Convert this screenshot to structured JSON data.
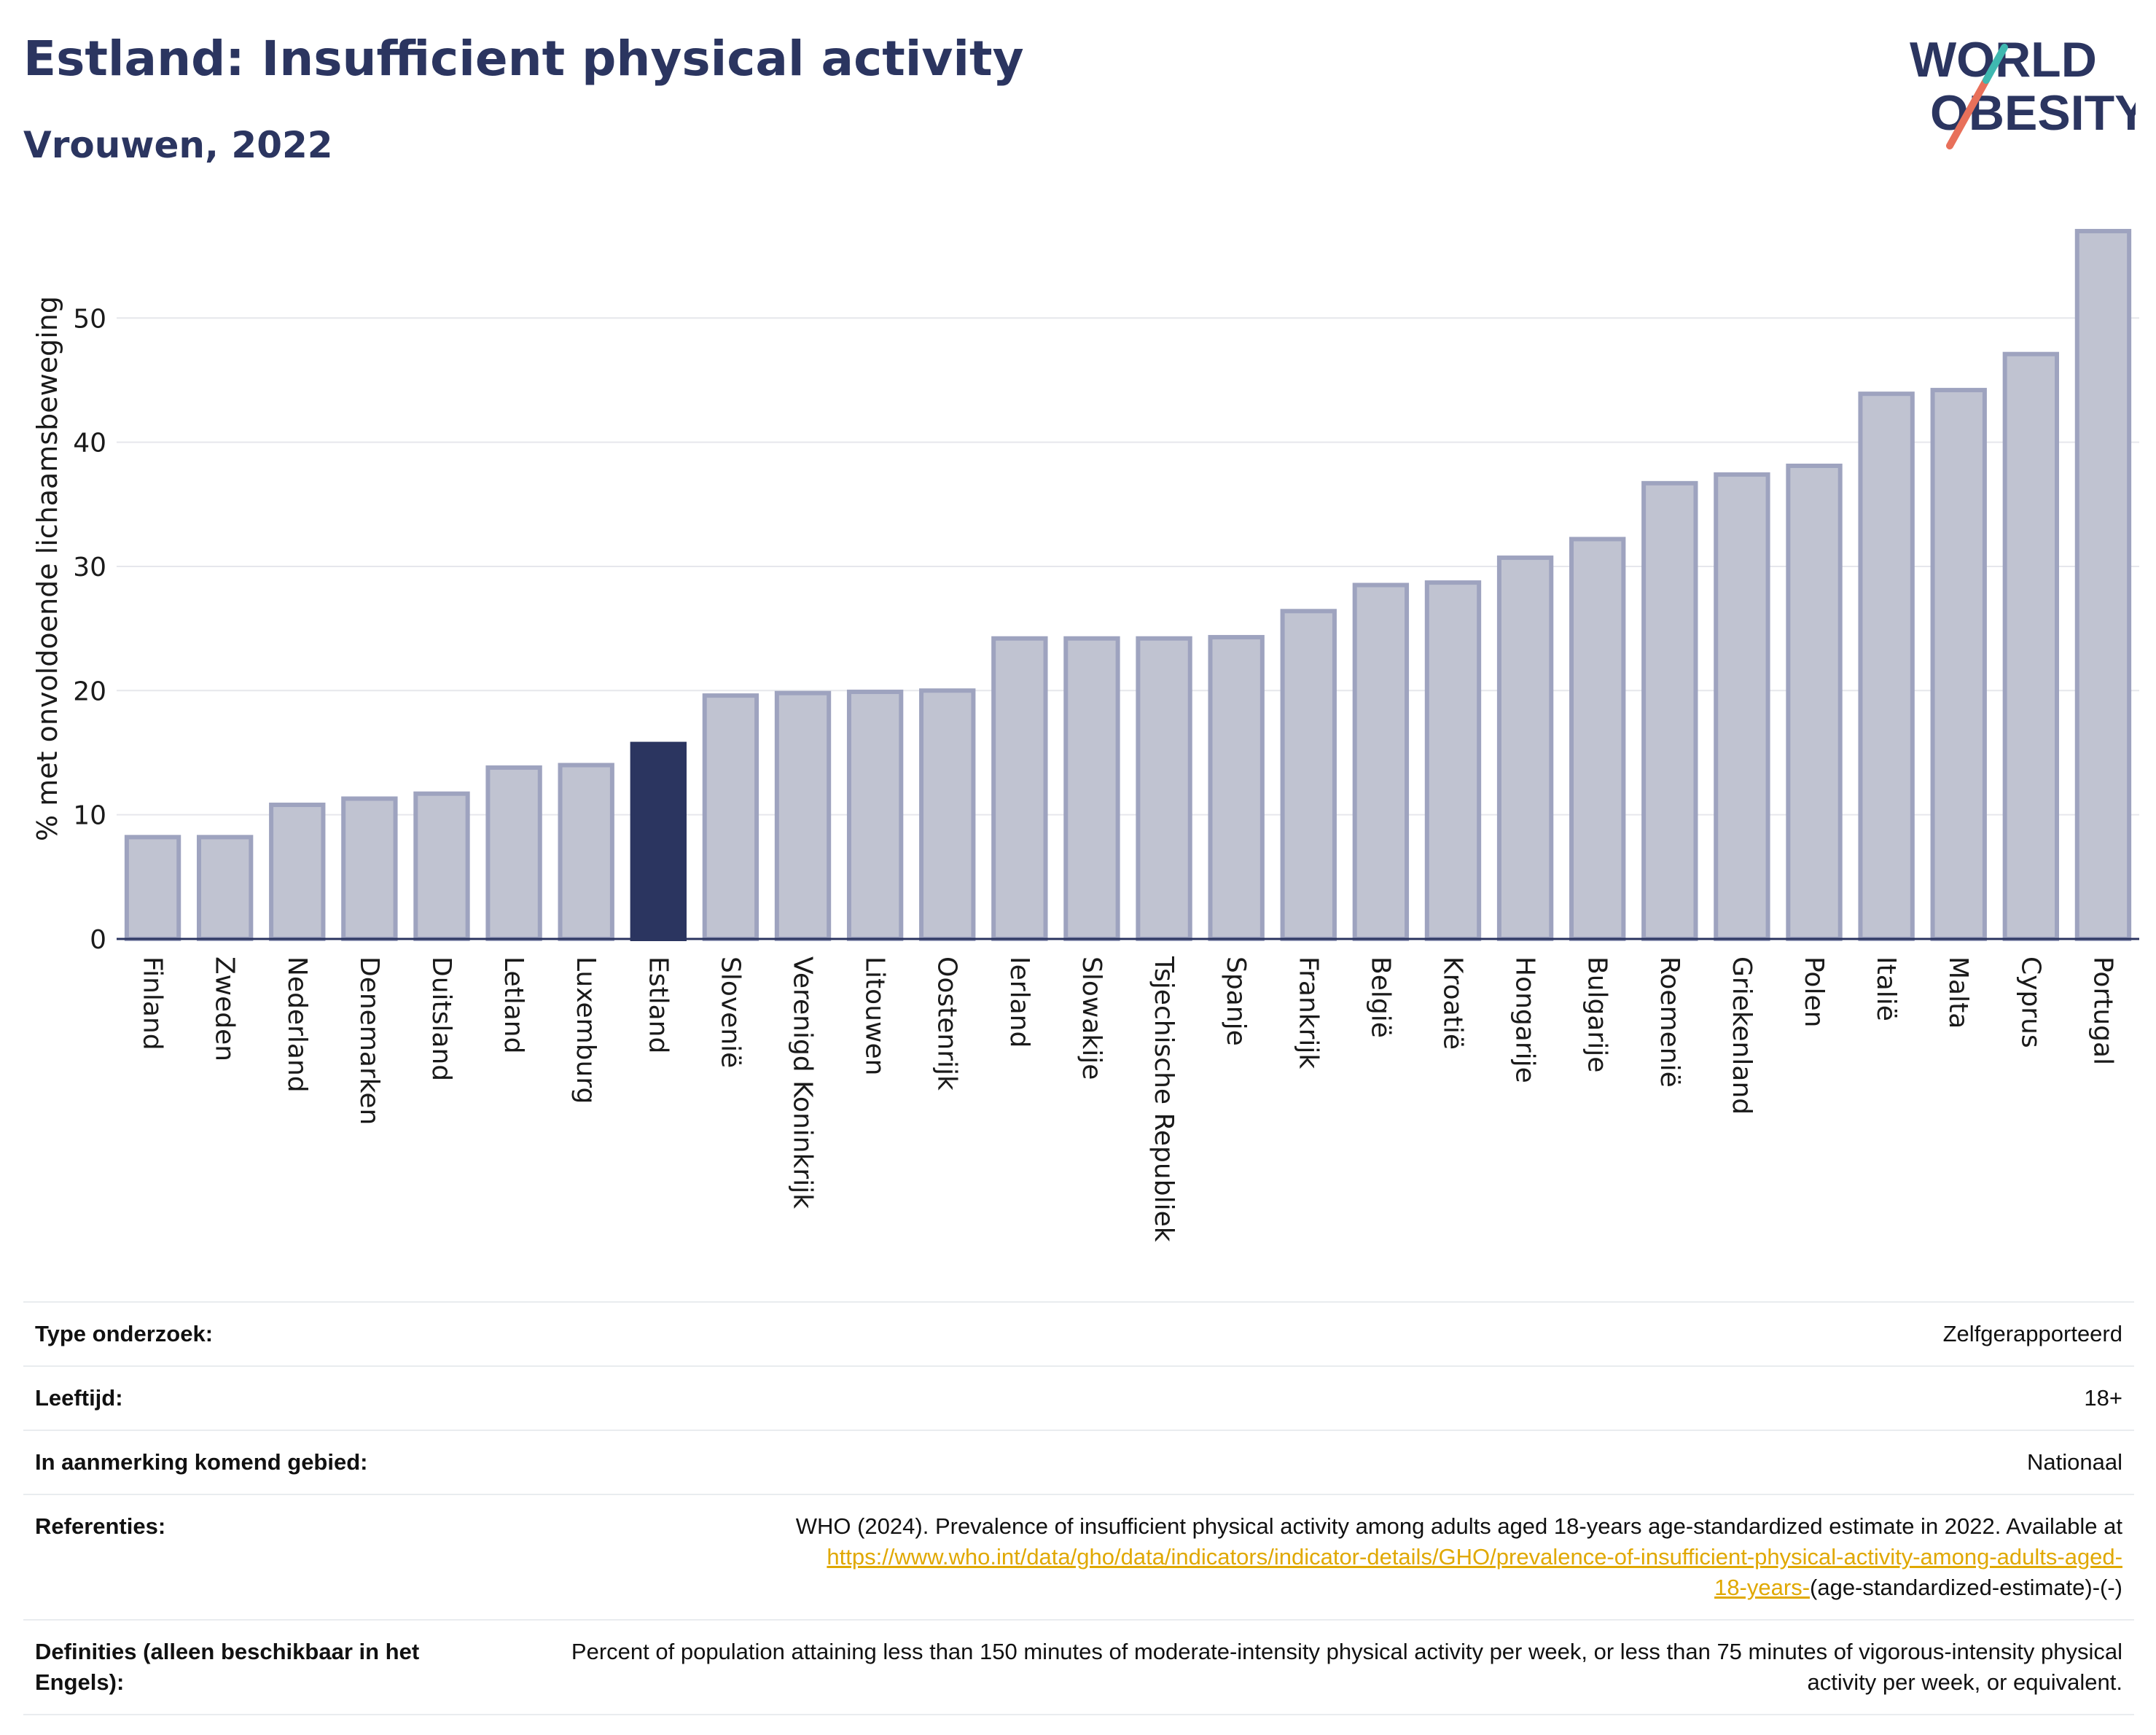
{
  "header": {
    "title": "Estland: Insufficient physical activity",
    "subtitle": "Vrouwen, 2022"
  },
  "logo": {
    "line1": "WORLD",
    "line2": "OBESITY",
    "colors": [
      "#2b3560",
      "#e8705a",
      "#3fb8b0"
    ]
  },
  "colors": {
    "bar": "#c0c3d1",
    "bar_edge": "#9ea3bf",
    "highlight": "#2b3560",
    "axis": "#2b3560",
    "grid": "#e6e7ec",
    "link": "#e0a800"
  },
  "chart_data": {
    "type": "bar",
    "title": "",
    "xlabel": "",
    "ylabel": "% met onvoldoende lichaamsbeweging",
    "ylim": [
      0,
      58
    ],
    "yticks": [
      0,
      10,
      20,
      30,
      40,
      50
    ],
    "grid": true,
    "highlight": "Estland",
    "categories": [
      "Finland",
      "Zweden",
      "Nederland",
      "Denemarken",
      "Duitsland",
      "Letland",
      "Luxemburg",
      "Estland",
      "Slovenië",
      "Verenigd Koninkrijk",
      "Litouwen",
      "Oostenrijk",
      "Ierland",
      "Slowakije",
      "Tsjechische Republiek",
      "Spanje",
      "Frankrijk",
      "België",
      "Kroatië",
      "Hongarije",
      "Bulgarije",
      "Roemenië",
      "Griekenland",
      "Polen",
      "Italië",
      "Malta",
      "Cyprus",
      "Portugal"
    ],
    "values": [
      8.2,
      8.2,
      10.8,
      11.3,
      11.7,
      13.8,
      14.0,
      15.7,
      19.6,
      19.8,
      19.9,
      20.0,
      24.2,
      24.2,
      24.2,
      24.3,
      26.4,
      28.5,
      28.7,
      30.7,
      32.2,
      36.7,
      37.4,
      38.1,
      43.9,
      44.2,
      47.1,
      57.0
    ]
  },
  "info": {
    "rows": [
      {
        "label": "Type onderzoek:",
        "value": "Zelfgerapporteerd"
      },
      {
        "label": "Leeftijd:",
        "value": "18+"
      },
      {
        "label": "In aanmerking komend gebied:",
        "value": "Nationaal"
      }
    ],
    "references": {
      "label": "Referenties:",
      "text": "WHO (2024). Prevalence of insufficient physical activity among adults aged 18-years age-standardized estimate in 2022. Available at",
      "link_line1": "https://www.who.int/data/gho/data/indicators/indicator-details/GHO/prevalence-of-insufficient-physical-activity-among-adults-aged-",
      "link_line2": "18-years-",
      "suffix": "(age-standardized-estimate)-(-)"
    },
    "definitions": {
      "label": "Definities (alleen beschikbaar in het Engels):",
      "text": "Percent of population attaining less than 150 minutes of moderate-intensity physical activity per week, or less than 75 minutes of vigorous-intensity physical activity per week, or equivalent."
    }
  }
}
